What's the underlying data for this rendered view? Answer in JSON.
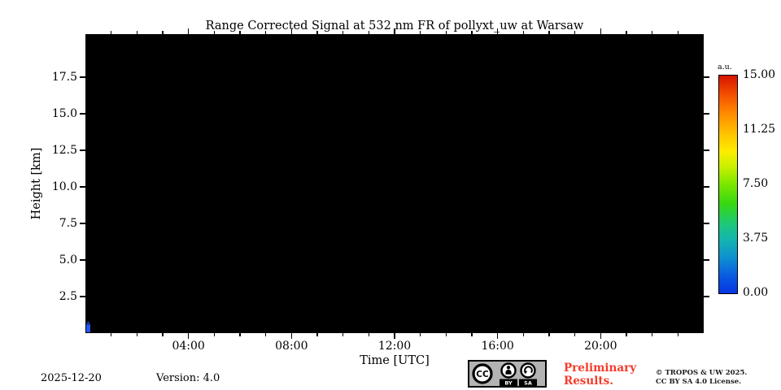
{
  "chart_data": {
    "type": "heatmap",
    "title": "Range Corrected Signal at 532 nm FR of pollyxt_uw at Warsaw",
    "xlabel": "Time [UTC]",
    "ylabel": "Height [km]",
    "plot_background": "#000000",
    "x_axis": {
      "range_hours": [
        0,
        24
      ],
      "minor_tick_every_hours": 1,
      "major_ticks": [
        {
          "hour": 4,
          "label": "04:00"
        },
        {
          "hour": 8,
          "label": "08:00"
        },
        {
          "hour": 12,
          "label": "12:00"
        },
        {
          "hour": 16,
          "label": "16:00"
        },
        {
          "hour": 20,
          "label": "20:00"
        }
      ]
    },
    "y_axis": {
      "range_km": [
        0,
        20.45
      ],
      "major_ticks": [
        {
          "km": 2.5,
          "label": "2.5"
        },
        {
          "km": 5,
          "label": "5.0"
        },
        {
          "km": 7.5,
          "label": "7.5"
        },
        {
          "km": 10,
          "label": "10.0"
        },
        {
          "km": 12.5,
          "label": "12.5"
        },
        {
          "km": 15,
          "label": "15.0"
        },
        {
          "km": 17.5,
          "label": "17.5"
        }
      ]
    },
    "colorbar": {
      "unit": "a.u.",
      "vmin": 0,
      "vmax": 15,
      "ticks": [
        {
          "value": 15,
          "label": "15.00"
        },
        {
          "value": 11.25,
          "label": "11.25"
        },
        {
          "value": 7.5,
          "label": "7.50"
        },
        {
          "value": 3.75,
          "label": "3.75"
        },
        {
          "value": 0,
          "label": "0.00"
        }
      ],
      "gradient_top_to_bottom": [
        "#d51400",
        "#f24a00",
        "#ff8800",
        "#ffc400",
        "#fded00",
        "#c8f000",
        "#7ae600",
        "#35d813",
        "#1ec878",
        "#15b6ae",
        "#0d8ed2",
        "#0a55e2",
        "#0636e0"
      ]
    },
    "observed_signal": [
      {
        "time_utc": "00:00",
        "height_km": "below ~0.6",
        "value": "low (blue)"
      }
    ]
  },
  "footer": {
    "date": "2025-12-20",
    "version": "Version: 4.0",
    "preliminary_line1": "Preliminary",
    "preliminary_line2": "Results.",
    "copyright_line1": "© TROPOS & UW 2025.",
    "copyright_line2": "CC BY SA 4.0 License.",
    "license_badge": {
      "cc_text": "CC",
      "labels": [
        "BY",
        "SA"
      ]
    }
  },
  "colors": {
    "preliminary_red": "#f43b2b",
    "copyright_text": "#1c1c1c",
    "badge_gray": "#b3b3b3",
    "signal_blue": "#2857f0",
    "signal_dark_blue": "#16389b",
    "plot_black": "#000000"
  }
}
